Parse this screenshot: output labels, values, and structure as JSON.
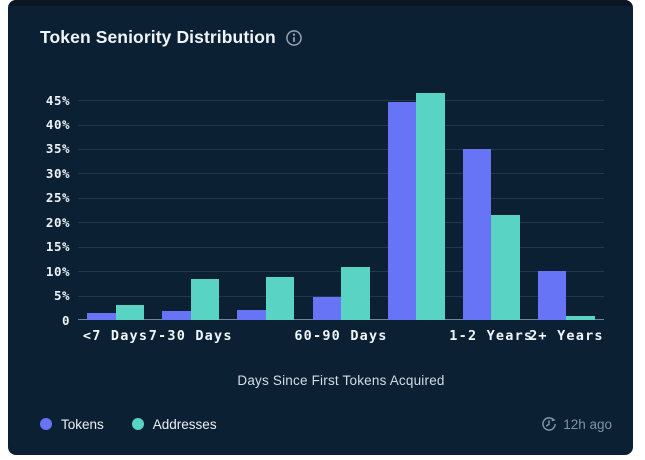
{
  "card": {
    "title": "Token Seniority Distribution",
    "last_updated": "12h ago"
  },
  "legend": [
    {
      "label": "Tokens",
      "color": "#6674f5"
    },
    {
      "label": "Addresses",
      "color": "#58d3c4"
    }
  ],
  "chart_data": {
    "type": "bar",
    "title": "Token Seniority Distribution",
    "xlabel": "Days Since First Tokens Acquired",
    "ylabel": "",
    "unit": "%",
    "categories": [
      "<7 Days",
      "7-30 Days",
      "",
      "60-90 Days",
      "",
      "1-2 Years",
      "2+ Years"
    ],
    "series": [
      {
        "name": "Tokens",
        "color": "#6674f5",
        "values": [
          1.5,
          1.8,
          2.0,
          4.8,
          44.7,
          35.0,
          10.0
        ]
      },
      {
        "name": "Addresses",
        "color": "#58d3c4",
        "values": [
          3.0,
          8.4,
          8.8,
          10.8,
          46.5,
          21.5,
          0.8
        ]
      }
    ],
    "ylim": [
      0,
      48.3
    ],
    "y_ticks": [
      {
        "value": 45,
        "label": "45%"
      },
      {
        "value": 40,
        "label": "40%"
      },
      {
        "value": 35,
        "label": "35%"
      },
      {
        "value": 30,
        "label": "30%"
      },
      {
        "value": 25,
        "label": "25%"
      },
      {
        "value": 20,
        "label": "20%"
      },
      {
        "value": 15,
        "label": "15%"
      },
      {
        "value": 10,
        "label": "10%"
      },
      {
        "value": 5,
        "label": "5%"
      },
      {
        "value": 0,
        "label": "0"
      }
    ],
    "grid": "horizontal-only",
    "legend_position": "bottom-left"
  },
  "colors": {
    "card_background": "#0b2133",
    "tokens": "#6674f5",
    "addresses": "#58d3c4",
    "grid_line": "#22394e",
    "axis_line": "#8fa1b2",
    "tick_text": "#eef3f8",
    "muted_text": "#8093a5"
  }
}
